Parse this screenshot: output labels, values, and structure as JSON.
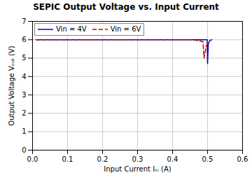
{
  "chart_data": {
    "type": "line",
    "title": "SEPIC Output Voltage vs. Input Current",
    "x_label": "Input Current Iᵢₙ (A)",
    "y_label": "Output Voltage Vₒᵤₜ (V)",
    "series": [
      {
        "name": "Vin = 4V",
        "color": "#0000bb",
        "line_style": "solid",
        "x": [
          0.01,
          0.1,
          0.2,
          0.3,
          0.4,
          0.48,
          0.499,
          0.5,
          0.502,
          0.506,
          0.512
        ],
        "values": [
          6.0,
          6.0,
          6.0,
          6.0,
          6.0,
          6.0,
          6.0,
          4.7,
          5.75,
          5.95,
          6.0
        ]
      },
      {
        "name": "Vin = 6V",
        "color": "#cc0000",
        "line_style": "dashed",
        "x": [
          0.01,
          0.1,
          0.2,
          0.3,
          0.4,
          0.46,
          0.487,
          0.49,
          0.496,
          0.502
        ],
        "values": [
          6.0,
          6.0,
          6.0,
          6.0,
          6.0,
          6.0,
          5.9,
          5.0,
          5.65,
          5.85
        ]
      }
    ],
    "xlim": [
      0,
      0.6
    ],
    "ylim": [
      0,
      7
    ],
    "xticks": [
      {
        "value": 0,
        "label": "0.0"
      },
      0.1,
      0.2,
      0.3,
      0.4,
      0.5,
      0.6
    ],
    "yticks": [
      0,
      1,
      2,
      3,
      4,
      5,
      6,
      7
    ],
    "grid": true,
    "legend": "upper left"
  }
}
